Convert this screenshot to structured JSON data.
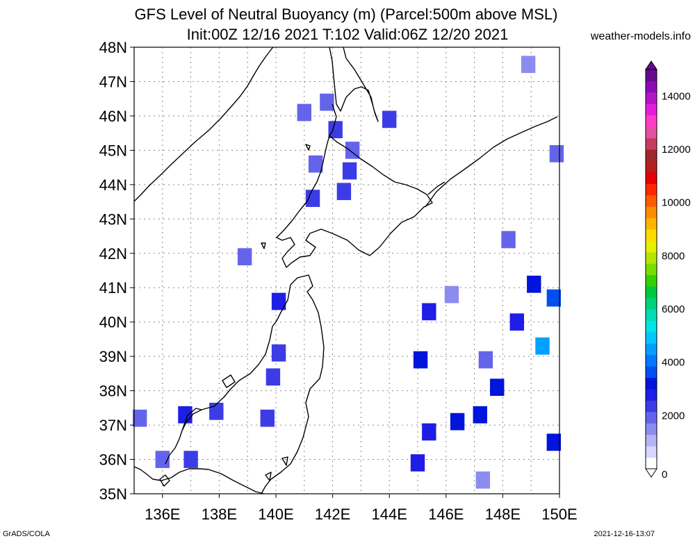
{
  "title_line1": "GFS Level of Neutral Buoyancy (m) (Parcel:500m above MSL)",
  "title_line2": "Init:00Z 12/16 2021 T:102 Valid:06Z 12/20 2021",
  "site": "weather-models.info",
  "credit": "GrADS/COLA",
  "timestamp": "2021-12-16-13:07",
  "lat_labels": [
    "48N",
    "47N",
    "46N",
    "45N",
    "44N",
    "43N",
    "42N",
    "41N",
    "40N",
    "39N",
    "38N",
    "37N",
    "36N",
    "35N"
  ],
  "lon_labels": [
    "136E",
    "138E",
    "140E",
    "142E",
    "144E",
    "146E",
    "148E",
    "150E"
  ],
  "map_extent": {
    "lon_min": 135,
    "lon_max": 150,
    "lat_min": 35,
    "lat_max": 48
  },
  "colorbar": {
    "ticks": [
      "0",
      "2000",
      "4000",
      "6000",
      "8000",
      "10000",
      "12000",
      "14000"
    ],
    "min": 0,
    "max": 15000,
    "colors": [
      "#ffffff",
      "#d6d6ff",
      "#b4b4f5",
      "#8c8cf0",
      "#6464eb",
      "#3c3ce6",
      "#1e1ee6",
      "#0014dc",
      "#0050f0",
      "#0078ff",
      "#00a0ff",
      "#00c8ff",
      "#00e6e6",
      "#00dcb4",
      "#00d278",
      "#00c83c",
      "#32d200",
      "#78dc00",
      "#b4e600",
      "#e6f000",
      "#ffdc00",
      "#ffb400",
      "#ff8c00",
      "#ff5a00",
      "#ff2800",
      "#e60000",
      "#b41e1e",
      "#a02828",
      "#c83c64",
      "#e650a0",
      "#ff3cc8",
      "#e61edc",
      "#b414c8",
      "#8c0ab4",
      "#640a8c"
    ]
  },
  "chart_data": {
    "type": "heatmap",
    "variable": "Level of Neutral Buoyancy (m)",
    "units": "m",
    "cells": [
      {
        "lon": 148.9,
        "lat": 47.5,
        "value": 1500
      },
      {
        "lon": 141.0,
        "lat": 46.1,
        "value": 1800
      },
      {
        "lon": 141.8,
        "lat": 46.4,
        "value": 1900
      },
      {
        "lon": 142.1,
        "lat": 45.6,
        "value": 2200
      },
      {
        "lon": 144.0,
        "lat": 45.9,
        "value": 2400
      },
      {
        "lon": 142.7,
        "lat": 45.0,
        "value": 1800
      },
      {
        "lon": 142.6,
        "lat": 44.4,
        "value": 2300
      },
      {
        "lon": 141.4,
        "lat": 44.6,
        "value": 2100
      },
      {
        "lon": 141.3,
        "lat": 43.6,
        "value": 2200
      },
      {
        "lon": 142.4,
        "lat": 43.8,
        "value": 2500
      },
      {
        "lon": 149.9,
        "lat": 44.9,
        "value": 2000
      },
      {
        "lon": 148.2,
        "lat": 42.4,
        "value": 2100
      },
      {
        "lon": 138.9,
        "lat": 41.9,
        "value": 2000
      },
      {
        "lon": 140.1,
        "lat": 40.6,
        "value": 2600
      },
      {
        "lon": 140.1,
        "lat": 39.1,
        "value": 2400
      },
      {
        "lon": 139.9,
        "lat": 38.4,
        "value": 2200
      },
      {
        "lon": 135.2,
        "lat": 37.2,
        "value": 2100
      },
      {
        "lon": 136.8,
        "lat": 37.3,
        "value": 2900
      },
      {
        "lon": 137.9,
        "lat": 37.4,
        "value": 2500
      },
      {
        "lon": 139.7,
        "lat": 37.2,
        "value": 2200
      },
      {
        "lon": 136.0,
        "lat": 36.0,
        "value": 2000
      },
      {
        "lon": 137.0,
        "lat": 36.0,
        "value": 2300
      },
      {
        "lon": 146.2,
        "lat": 40.8,
        "value": 1700
      },
      {
        "lon": 145.4,
        "lat": 40.3,
        "value": 2900
      },
      {
        "lon": 148.5,
        "lat": 40.0,
        "value": 2700
      },
      {
        "lon": 149.4,
        "lat": 39.3,
        "value": 4600
      },
      {
        "lon": 149.1,
        "lat": 41.1,
        "value": 3300
      },
      {
        "lon": 149.8,
        "lat": 40.7,
        "value": 3600
      },
      {
        "lon": 147.4,
        "lat": 38.9,
        "value": 1900
      },
      {
        "lon": 147.8,
        "lat": 38.1,
        "value": 3200
      },
      {
        "lon": 145.1,
        "lat": 38.9,
        "value": 3200
      },
      {
        "lon": 145.4,
        "lat": 36.8,
        "value": 2900
      },
      {
        "lon": 146.4,
        "lat": 37.1,
        "value": 3400
      },
      {
        "lon": 147.2,
        "lat": 37.3,
        "value": 3000
      },
      {
        "lon": 147.3,
        "lat": 35.4,
        "value": 1700
      },
      {
        "lon": 149.8,
        "lat": 36.5,
        "value": 3200
      },
      {
        "lon": 145.0,
        "lat": 35.9,
        "value": 2600
      }
    ]
  }
}
